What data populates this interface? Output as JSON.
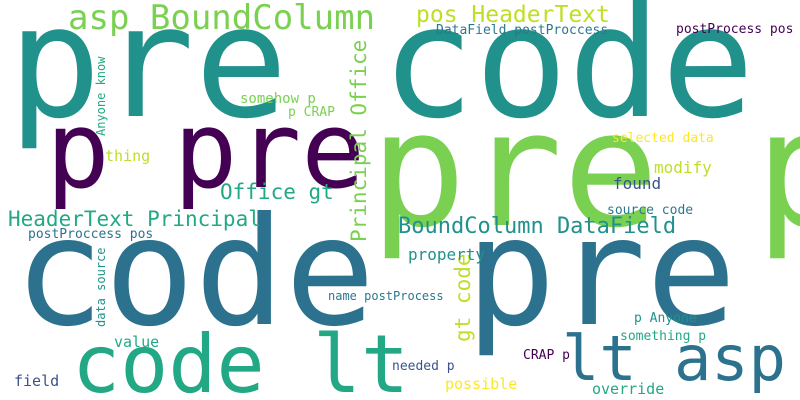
{
  "word_cloud": {
    "words": [
      {
        "text": "pre code",
        "color": "#21918c"
      },
      {
        "text": "pre p",
        "color": "#7ad151"
      },
      {
        "text": "code pre",
        "color": "#2c728e"
      },
      {
        "text": "p pre",
        "color": "#440154"
      },
      {
        "text": "code lt",
        "color": "#22a884"
      },
      {
        "text": "lt asp",
        "color": "#2c728e"
      },
      {
        "text": "asp BoundColumn",
        "color": "#7ad151"
      },
      {
        "text": "pos HeaderText",
        "color": "#bddf26"
      },
      {
        "text": "BoundColumn DataField",
        "color": "#21918c"
      },
      {
        "text": "HeaderText Principal",
        "color": "#22a884"
      },
      {
        "text": "Principal Office",
        "color": "#7ad151"
      },
      {
        "text": "Office gt",
        "color": "#22a884"
      },
      {
        "text": "gt code",
        "color": "#bddf26"
      },
      {
        "text": "DataField postProccess",
        "color": "#2a788e"
      },
      {
        "text": "postProcess pos",
        "color": "#440154"
      },
      {
        "text": "somehow p",
        "color": "#7ad151"
      },
      {
        "text": "p CRAP",
        "color": "#7ad151"
      },
      {
        "text": "Anyone know",
        "color": "#22a884"
      },
      {
        "text": "thing",
        "color": "#bddf26"
      },
      {
        "text": "selected data",
        "color": "#fde725"
      },
      {
        "text": "modify",
        "color": "#bddf26"
      },
      {
        "text": "found",
        "color": "#3b528b"
      },
      {
        "text": "source code",
        "color": "#2a788e"
      },
      {
        "text": "property",
        "color": "#21918c"
      },
      {
        "text": "postProccess pos",
        "color": "#2c728e"
      },
      {
        "text": "data source",
        "color": "#21918c"
      },
      {
        "text": "name postProcess",
        "color": "#2a788e"
      },
      {
        "text": "p Anyone",
        "color": "#21918c"
      },
      {
        "text": "something p",
        "color": "#22a884"
      },
      {
        "text": "value",
        "color": "#22a884"
      },
      {
        "text": "CRAP p",
        "color": "#440154"
      },
      {
        "text": "field",
        "color": "#3b528b"
      },
      {
        "text": "needed p",
        "color": "#3b528b"
      },
      {
        "text": "possible",
        "color": "#fde725"
      },
      {
        "text": "override",
        "color": "#22a884"
      }
    ]
  }
}
